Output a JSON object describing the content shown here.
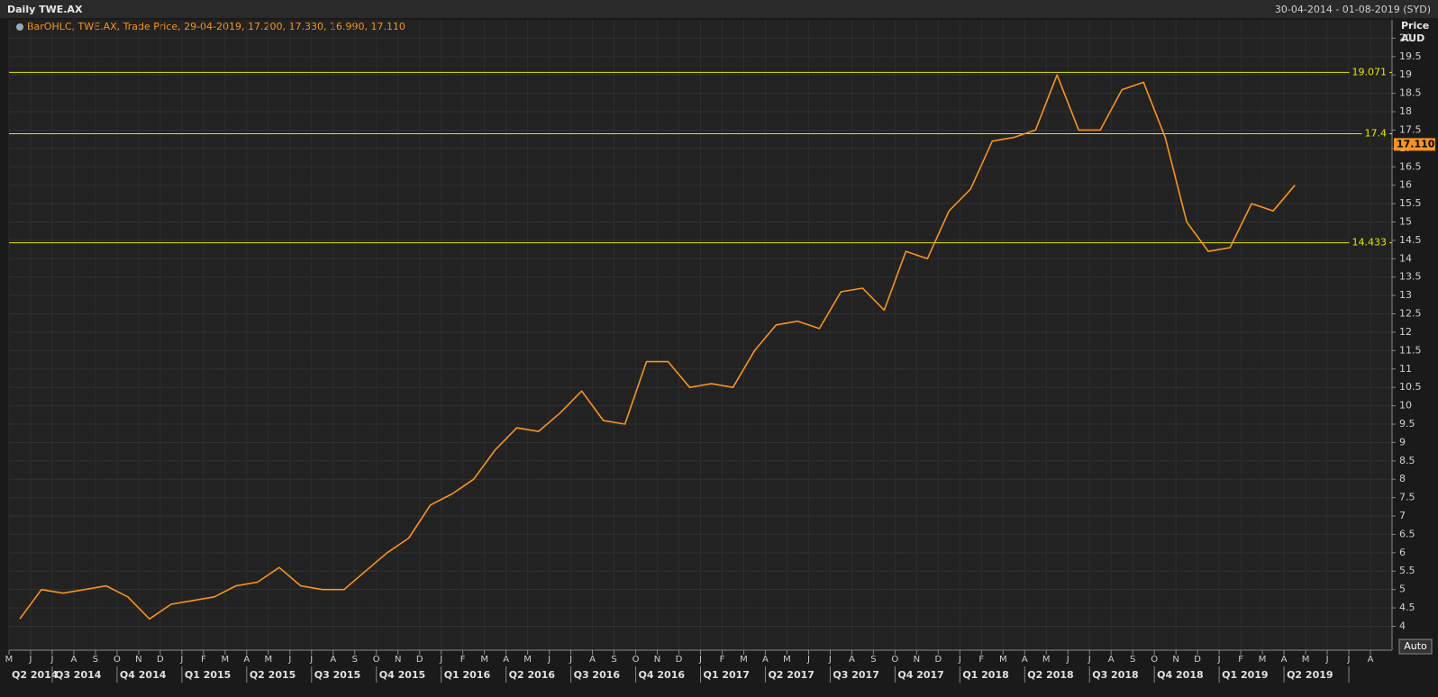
{
  "header": {
    "title": "Daily TWE.AX",
    "range": "30-04-2014 - 01-08-2019 (SYD)"
  },
  "chart_data": {
    "type": "line",
    "legend": "BarOHLC, TWE.AX, Trade Price, 29-04-2019, 17.200, 17.330, 16.990, 17.110",
    "y_label": "Price",
    "y_unit": "AUD",
    "categories": [
      "M",
      "J",
      "J",
      "A",
      "S",
      "O",
      "N",
      "D",
      "J",
      "F",
      "M",
      "A",
      "M",
      "J",
      "J",
      "A",
      "S",
      "O",
      "N",
      "D",
      "J",
      "F",
      "M",
      "A",
      "M",
      "J",
      "J",
      "A",
      "S",
      "O",
      "N",
      "D",
      "J",
      "F",
      "M",
      "A",
      "M",
      "J",
      "J",
      "A",
      "S",
      "O",
      "N",
      "D",
      "J",
      "F",
      "M",
      "A",
      "M",
      "J",
      "J",
      "A",
      "S",
      "O",
      "N",
      "D",
      "J",
      "F",
      "M",
      "A",
      "M",
      "J",
      "J",
      "A"
    ],
    "quarters": [
      "Q2 2014",
      "Q3 2014",
      "Q4 2014",
      "Q1 2015",
      "Q2 2015",
      "Q3 2015",
      "Q4 2015",
      "Q1 2016",
      "Q2 2016",
      "Q3 2016",
      "Q4 2016",
      "Q1 2017",
      "Q2 2017",
      "Q3 2017",
      "Q4 2017",
      "Q1 2018",
      "Q2 2018",
      "Q3 2018",
      "Q4 2018",
      "Q1 2019",
      "Q2 2019"
    ],
    "color": "#f7941d",
    "values": [
      4.2,
      5.0,
      4.9,
      5.0,
      5.1,
      4.8,
      4.2,
      4.6,
      4.7,
      4.8,
      5.1,
      5.2,
      5.6,
      5.1,
      5.0,
      5.0,
      5.5,
      6.0,
      6.4,
      7.3,
      7.6,
      8.0,
      8.8,
      9.4,
      9.3,
      9.8,
      10.4,
      9.6,
      9.5,
      11.2,
      11.2,
      10.5,
      10.6,
      10.5,
      11.5,
      12.2,
      12.3,
      12.1,
      13.1,
      13.2,
      12.6,
      14.2,
      14.0,
      15.3,
      15.9,
      17.2,
      17.3,
      17.5,
      19.0,
      17.5,
      17.5,
      18.6,
      18.8,
      17.3,
      15.0,
      14.2,
      14.3,
      15.5,
      15.3,
      16.0,
      null,
      null,
      null,
      null
    ],
    "levels": [
      19.071,
      17.4,
      14.433
    ],
    "level_color": "#e6e600",
    "last_price": {
      "value": 17.11,
      "label": "17.110"
    },
    "ylim": [
      3.35,
      20.5
    ],
    "yticks": [
      4,
      4.5,
      5,
      5.5,
      6,
      6.5,
      7,
      7.5,
      8,
      8.5,
      9,
      9.5,
      10,
      10.5,
      11,
      11.5,
      12,
      12.5,
      13,
      13.5,
      14,
      14.5,
      15,
      15.5,
      16,
      16.5,
      17,
      17.5,
      18,
      18.5,
      19,
      19.5,
      20
    ],
    "grid": true,
    "auto_button": "Auto"
  }
}
